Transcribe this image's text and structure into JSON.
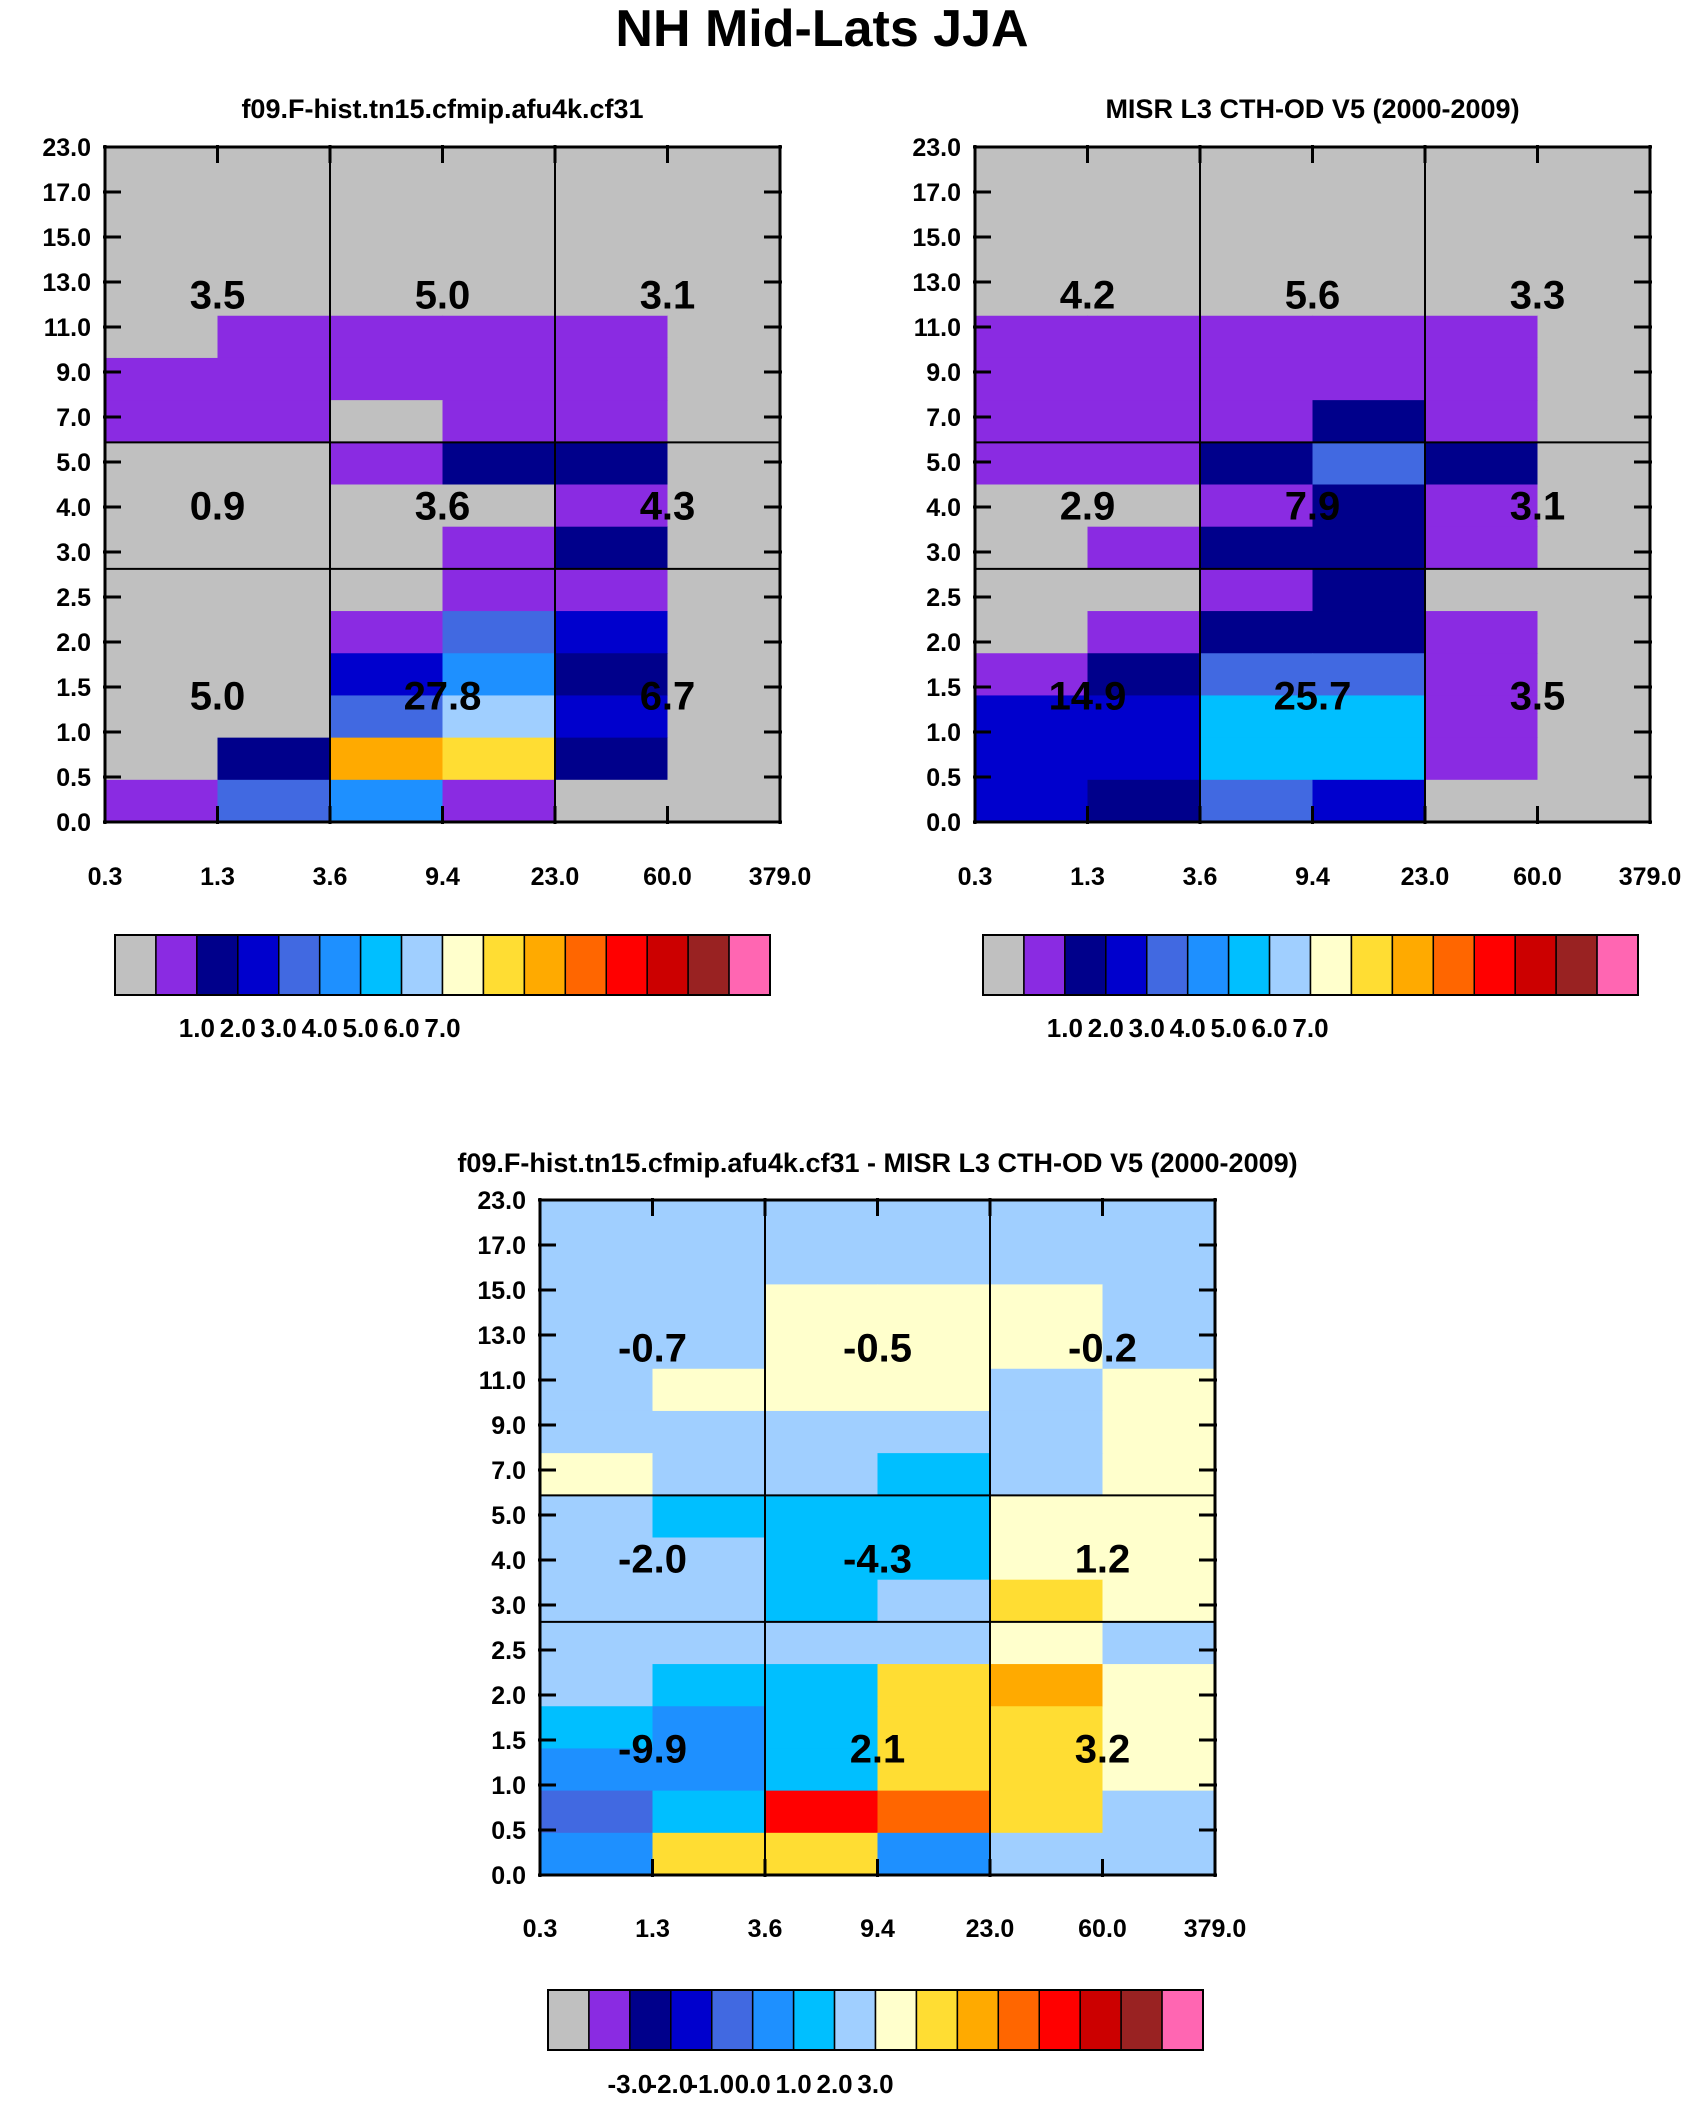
{
  "main_title": "NH Mid-Lats JJA",
  "chart_data": [
    {
      "type": "heatmap",
      "title": "f09.F-hist.tn15.cfmip.afu4k.cf31",
      "xlabel": "",
      "ylabel": "",
      "x_tick_labels": [
        "0.3",
        "1.3",
        "3.6",
        "9.4",
        "23.0",
        "60.0",
        "379.0"
      ],
      "y_tick_labels": [
        "0.0",
        "0.5",
        "1.0",
        "1.5",
        "2.0",
        "2.5",
        "3.0",
        "4.0",
        "5.0",
        "7.0",
        "9.0",
        "11.0",
        "13.0",
        "15.0",
        "17.0",
        "23.0"
      ],
      "cells_top_to_bottom": [
        [
          0,
          0,
          0,
          0,
          0,
          0
        ],
        [
          0,
          0,
          0,
          0,
          0,
          0
        ],
        [
          0,
          1,
          1,
          1,
          1,
          0
        ],
        [
          1,
          1,
          1,
          1,
          1,
          0
        ],
        [
          1,
          1,
          0,
          1,
          1,
          0
        ],
        [
          0,
          0,
          1,
          2,
          2,
          0
        ],
        [
          0,
          0,
          0,
          0,
          1,
          0
        ],
        [
          0,
          0,
          0,
          1,
          2,
          0
        ],
        [
          0,
          0,
          0,
          1,
          1,
          0
        ],
        [
          0,
          0,
          1,
          4,
          3,
          0
        ],
        [
          0,
          0,
          3,
          5,
          2,
          0
        ],
        [
          0,
          0,
          4,
          7,
          3,
          0
        ],
        [
          0,
          2,
          10,
          9,
          2,
          0
        ],
        [
          1,
          4,
          5,
          1,
          0,
          0
        ]
      ],
      "sector_values": [
        [
          "3.5",
          "5.0",
          "3.1"
        ],
        [
          "0.9",
          "3.6",
          "4.3"
        ],
        [
          "5.0",
          "27.8",
          "6.7"
        ]
      ],
      "colorbar_labels": [
        "1.0",
        "2.0",
        "3.0",
        "4.0",
        "5.0",
        "6.0",
        "7.0"
      ]
    },
    {
      "type": "heatmap",
      "title": "MISR L3 CTH-OD V5 (2000-2009)",
      "xlabel": "",
      "ylabel": "",
      "x_tick_labels": [
        "0.3",
        "1.3",
        "3.6",
        "9.4",
        "23.0",
        "60.0",
        "379.0"
      ],
      "y_tick_labels": [
        "0.0",
        "0.5",
        "1.0",
        "1.5",
        "2.0",
        "2.5",
        "3.0",
        "4.0",
        "5.0",
        "7.0",
        "9.0",
        "11.0",
        "13.0",
        "15.0",
        "17.0",
        "23.0"
      ],
      "cells_top_to_bottom": [
        [
          0,
          0,
          0,
          0,
          0,
          0
        ],
        [
          0,
          0,
          0,
          0,
          0,
          0
        ],
        [
          1,
          1,
          1,
          1,
          1,
          0
        ],
        [
          1,
          1,
          1,
          1,
          1,
          0
        ],
        [
          1,
          1,
          1,
          2,
          1,
          0
        ],
        [
          1,
          1,
          2,
          4,
          2,
          0
        ],
        [
          0,
          0,
          1,
          2,
          1,
          0
        ],
        [
          0,
          1,
          2,
          2,
          1,
          0
        ],
        [
          0,
          0,
          1,
          2,
          0,
          0
        ],
        [
          0,
          1,
          2,
          2,
          1,
          0
        ],
        [
          1,
          2,
          4,
          4,
          1,
          0
        ],
        [
          3,
          3,
          6,
          6,
          1,
          0
        ],
        [
          3,
          3,
          6,
          6,
          1,
          0
        ],
        [
          3,
          2,
          4,
          3,
          0,
          0
        ]
      ],
      "sector_values": [
        [
          "4.2",
          "5.6",
          "3.3"
        ],
        [
          "2.9",
          "7.9",
          "3.1"
        ],
        [
          "14.9",
          "25.7",
          "3.5"
        ]
      ],
      "colorbar_labels": [
        "1.0",
        "2.0",
        "3.0",
        "4.0",
        "5.0",
        "6.0",
        "7.0"
      ]
    },
    {
      "type": "heatmap",
      "title": "f09.F-hist.tn15.cfmip.afu4k.cf31 - MISR L3 CTH-OD V5 (2000-2009)",
      "xlabel": "",
      "ylabel": "",
      "x_tick_labels": [
        "0.3",
        "1.3",
        "3.6",
        "9.4",
        "23.0",
        "60.0",
        "379.0"
      ],
      "y_tick_labels": [
        "0.0",
        "0.5",
        "1.0",
        "1.5",
        "2.0",
        "2.5",
        "3.0",
        "4.0",
        "5.0",
        "7.0",
        "9.0",
        "11.0",
        "13.0",
        "15.0",
        "17.0",
        "23.0"
      ],
      "cells_top_to_bottom": [
        [
          7,
          7,
          7,
          7,
          7,
          7
        ],
        [
          7,
          7,
          8,
          8,
          8,
          7
        ],
        [
          7,
          8,
          8,
          8,
          7,
          8
        ],
        [
          7,
          7,
          7,
          7,
          7,
          8
        ],
        [
          8,
          7,
          7,
          6,
          7,
          8
        ],
        [
          7,
          6,
          6,
          6,
          8,
          8
        ],
        [
          7,
          7,
          6,
          6,
          8,
          8
        ],
        [
          7,
          7,
          6,
          7,
          9,
          8
        ],
        [
          7,
          7,
          7,
          7,
          8,
          7
        ],
        [
          7,
          6,
          6,
          9,
          10,
          8
        ],
        [
          6,
          5,
          6,
          9,
          9,
          8
        ],
        [
          5,
          5,
          6,
          9,
          9,
          8
        ],
        [
          4,
          6,
          12,
          11,
          9,
          7
        ],
        [
          5,
          9,
          9,
          5,
          7,
          7
        ]
      ],
      "sector_values": [
        [
          "-0.7",
          "-0.5",
          "-0.2"
        ],
        [
          "-2.0",
          "-4.3",
          "1.2"
        ],
        [
          "-9.9",
          "2.1",
          "3.2"
        ]
      ],
      "colorbar_labels": [
        "-3.0",
        "-2.0",
        "-1.0",
        "0.0",
        "1.0",
        "2.0",
        "3.0"
      ]
    }
  ],
  "colormap": [
    "#c0c0c0",
    "#8a2be2",
    "#00008b",
    "#0000cd",
    "#4169e1",
    "#1e90ff",
    "#00bfff",
    "#a0cfff",
    "#ffffcc",
    "#ffdd33",
    "#ffaa00",
    "#ff6600",
    "#ff0000",
    "#cc0000",
    "#992222",
    "#ff66b2"
  ]
}
